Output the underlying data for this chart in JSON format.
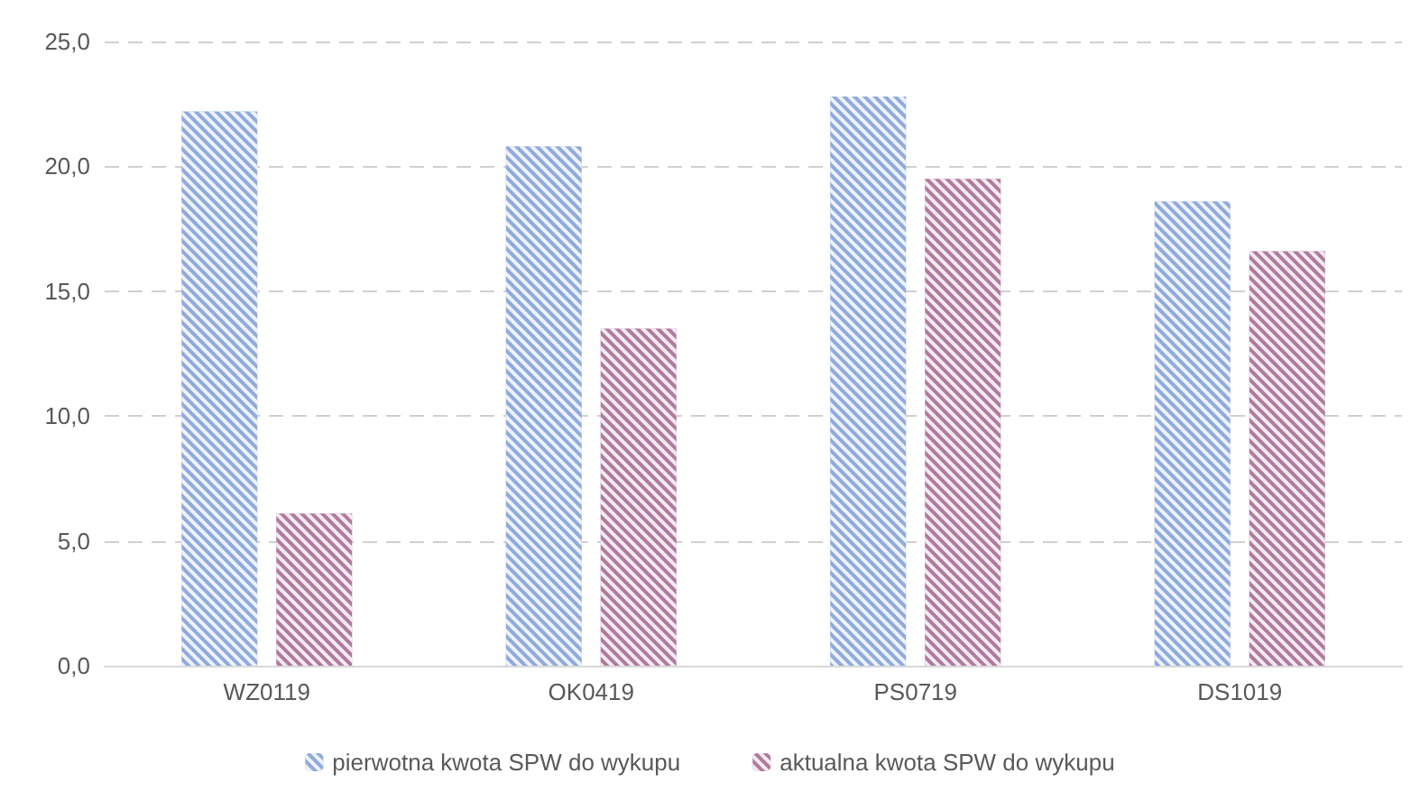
{
  "chart_data": {
    "type": "bar",
    "categories": [
      "WZ0119",
      "OK0419",
      "PS0719",
      "DS1019"
    ],
    "series": [
      {
        "name": "pierwotna kwota SPW do wykupu",
        "color": "#8faadc",
        "values": [
          22.2,
          20.8,
          22.8,
          18.6
        ]
      },
      {
        "name": "aktualna kwota SPW do wykupu",
        "color": "#b07a9e",
        "values": [
          6.1,
          13.5,
          19.5,
          16.6
        ]
      }
    ],
    "ylim": [
      0,
      25
    ],
    "yticks": [
      {
        "value": 0,
        "label": "0,0"
      },
      {
        "value": 5,
        "label": "5,0"
      },
      {
        "value": 10,
        "label": "10,0"
      },
      {
        "value": 15,
        "label": "15,0"
      },
      {
        "value": 20,
        "label": "20,0"
      },
      {
        "value": 25,
        "label": "25,0"
      }
    ],
    "grid": "y",
    "legend": "bottom"
  }
}
